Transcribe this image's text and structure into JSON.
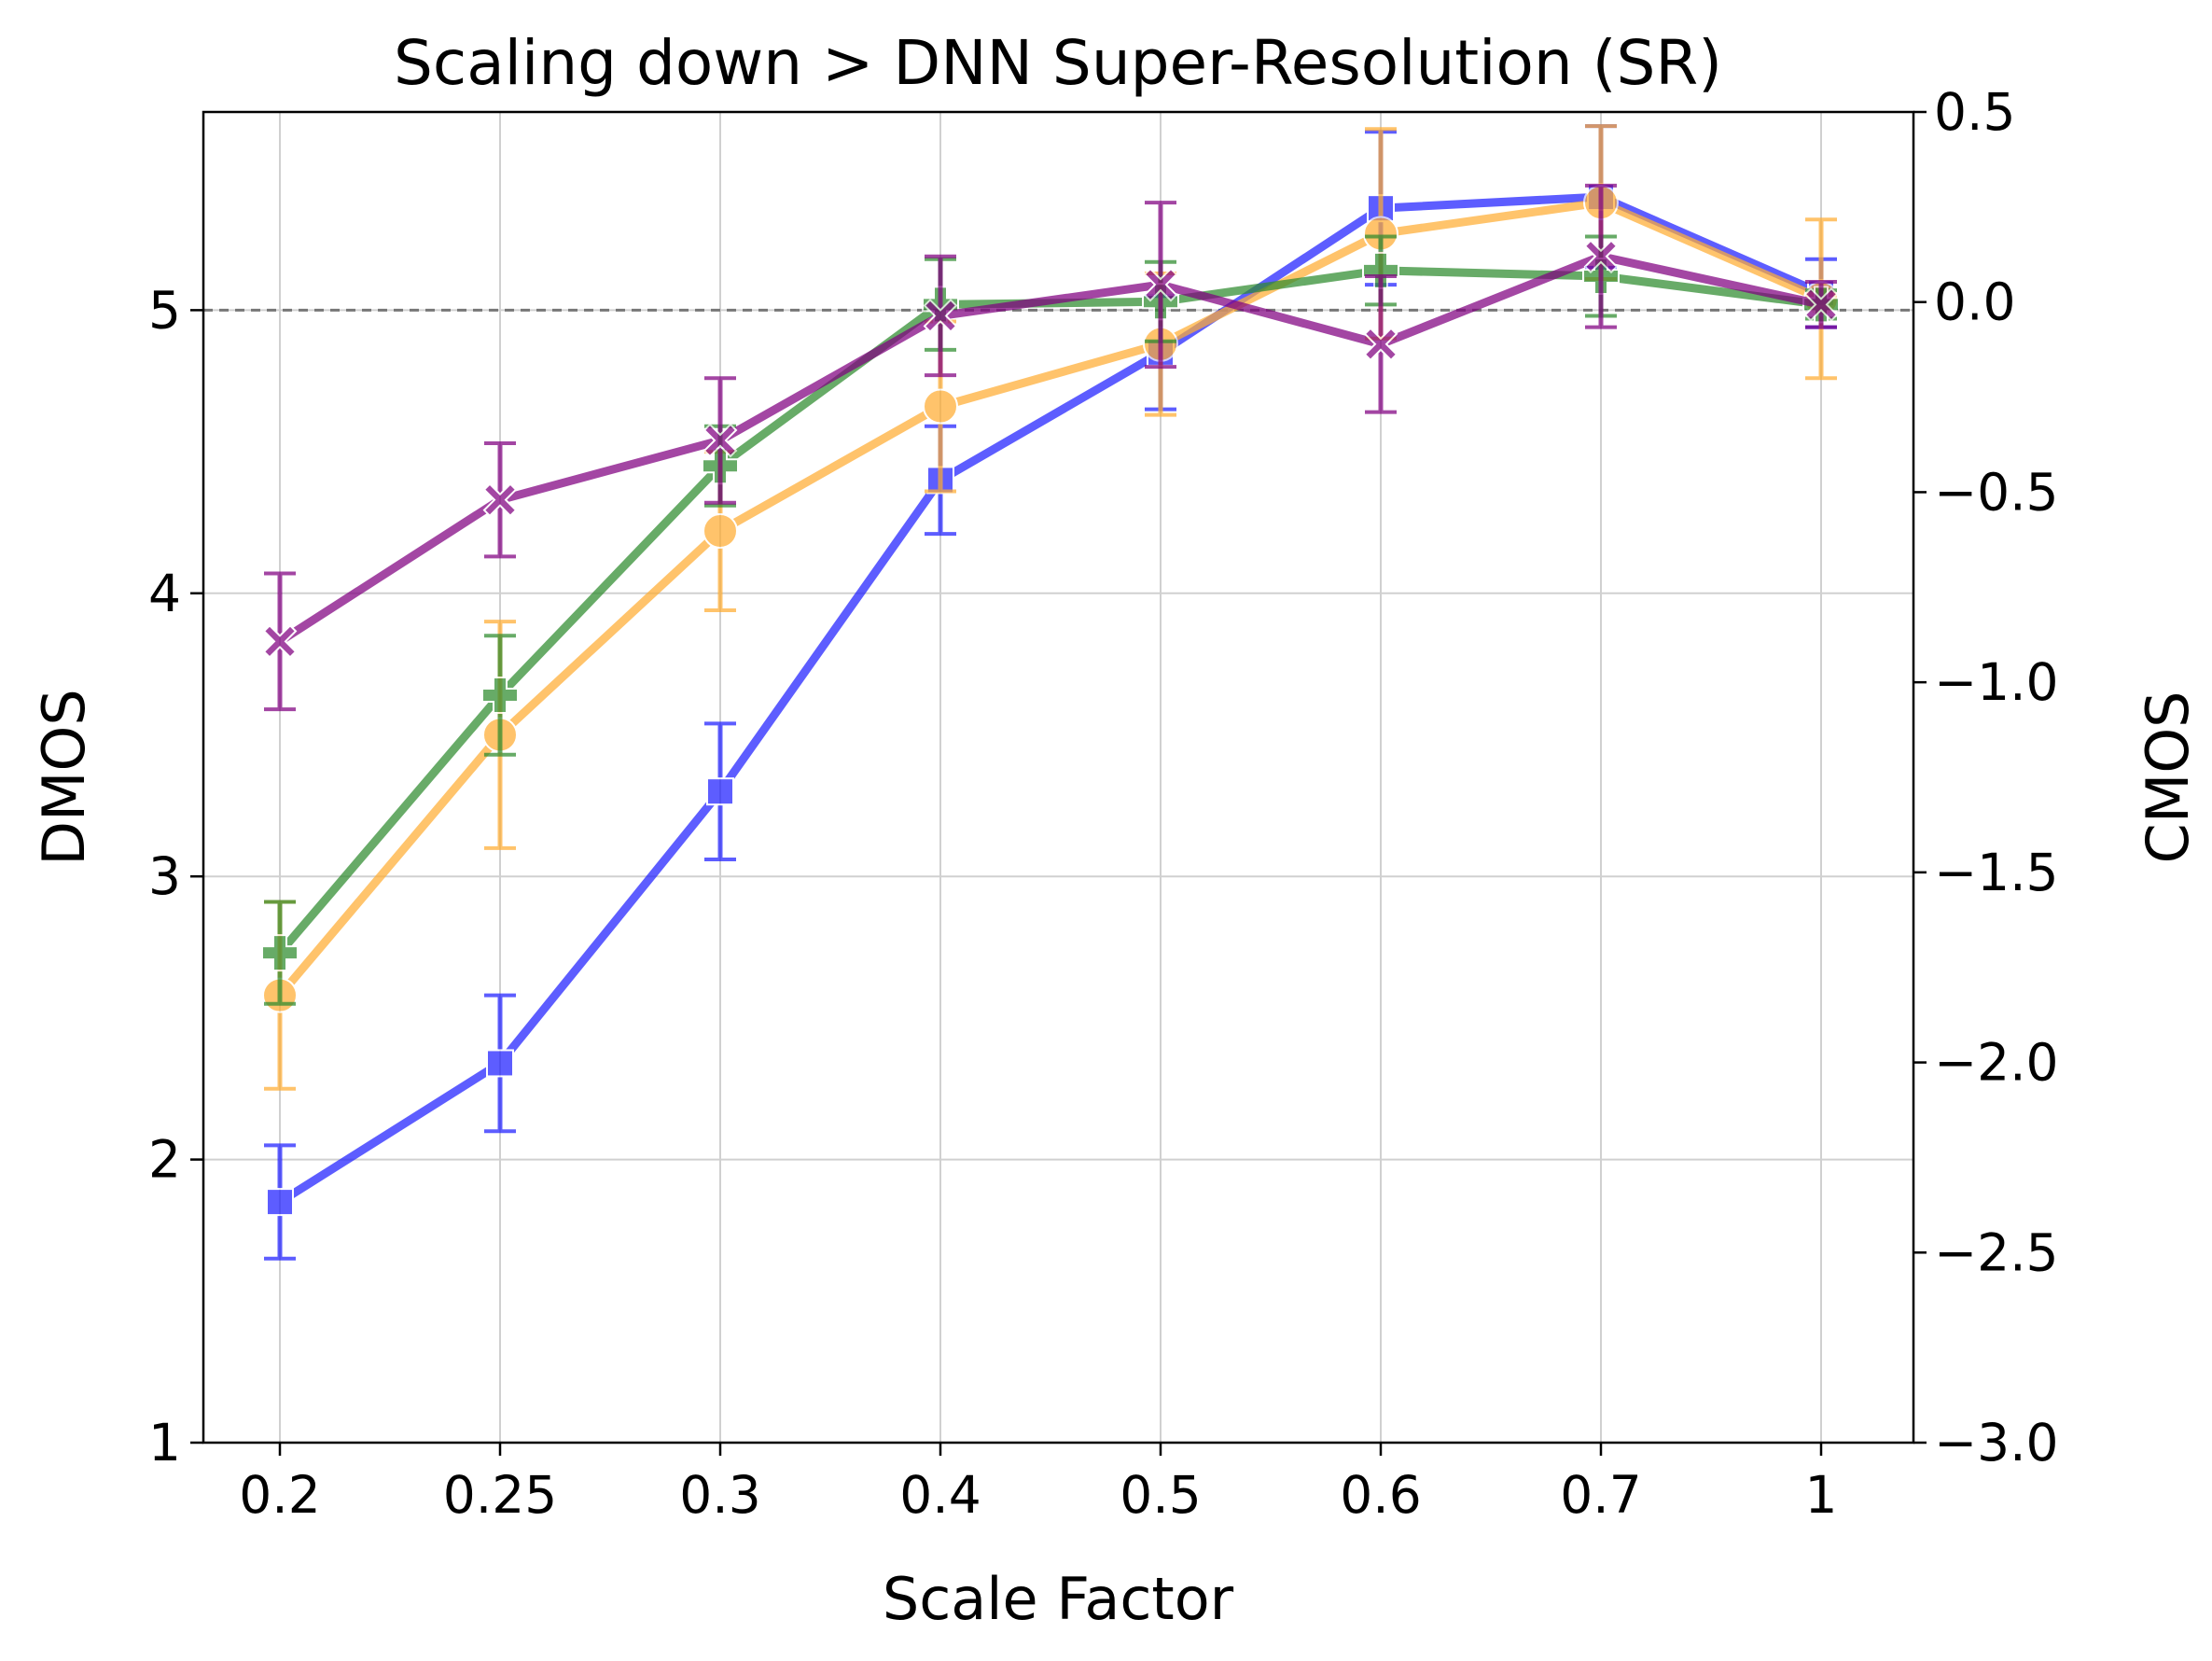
{
  "chart_data": {
    "type": "line",
    "title": "Scaling down > DNN Super-Resolution (SR)",
    "xlabel": "Scale Factor",
    "ylabel": "DMOS",
    "y2label": "CMOS",
    "categories": [
      "0.2",
      "0.25",
      "0.3",
      "0.4",
      "0.5",
      "0.6",
      "0.7",
      "1"
    ],
    "ylim": [
      1,
      5.7
    ],
    "y2lim": [
      -3.0,
      0.5
    ],
    "yticks": [
      "1",
      "2",
      "3",
      "4",
      "5"
    ],
    "y2ticks": [
      "−3.0",
      "−2.5",
      "−2.0",
      "−1.5",
      "−1.0",
      "−0.5",
      "0.0",
      "0.5"
    ],
    "y2tick_values": [
      -3.0,
      -2.5,
      -2.0,
      -1.5,
      -1.0,
      -0.5,
      0.0,
      0.5
    ],
    "reference_line": {
      "axis": "left",
      "value": 5,
      "style": "dashed"
    },
    "grid": true,
    "series": [
      {
        "name": "blue",
        "color": "#1f1fff",
        "marker": "square",
        "values": [
          1.85,
          2.34,
          3.3,
          4.4,
          4.85,
          5.36,
          5.4,
          5.06
        ],
        "errors": [
          0.2,
          0.24,
          0.24,
          0.19,
          0.2,
          0.27,
          0.25,
          0.12
        ]
      },
      {
        "name": "orange",
        "color": "#ffad33",
        "marker": "circle",
        "values": [
          2.58,
          3.5,
          4.22,
          4.66,
          4.88,
          5.27,
          5.38,
          5.04
        ],
        "errors": [
          0.33,
          0.4,
          0.28,
          0.3,
          0.25,
          0.37,
          0.27,
          0.28
        ]
      },
      {
        "name": "green",
        "color": "#2e8b2e",
        "marker": "plus",
        "values": [
          2.73,
          3.64,
          4.45,
          5.02,
          5.03,
          5.14,
          5.12,
          5.02
        ],
        "errors": [
          0.18,
          0.21,
          0.14,
          0.16,
          0.14,
          0.12,
          0.14,
          0.05
        ]
      },
      {
        "name": "purple",
        "color": "#800080",
        "marker": "x",
        "values": [
          3.83,
          4.33,
          4.54,
          4.98,
          5.09,
          4.88,
          5.19,
          5.02
        ],
        "errors": [
          0.24,
          0.2,
          0.22,
          0.21,
          0.29,
          0.24,
          0.25,
          0.08
        ]
      }
    ]
  }
}
